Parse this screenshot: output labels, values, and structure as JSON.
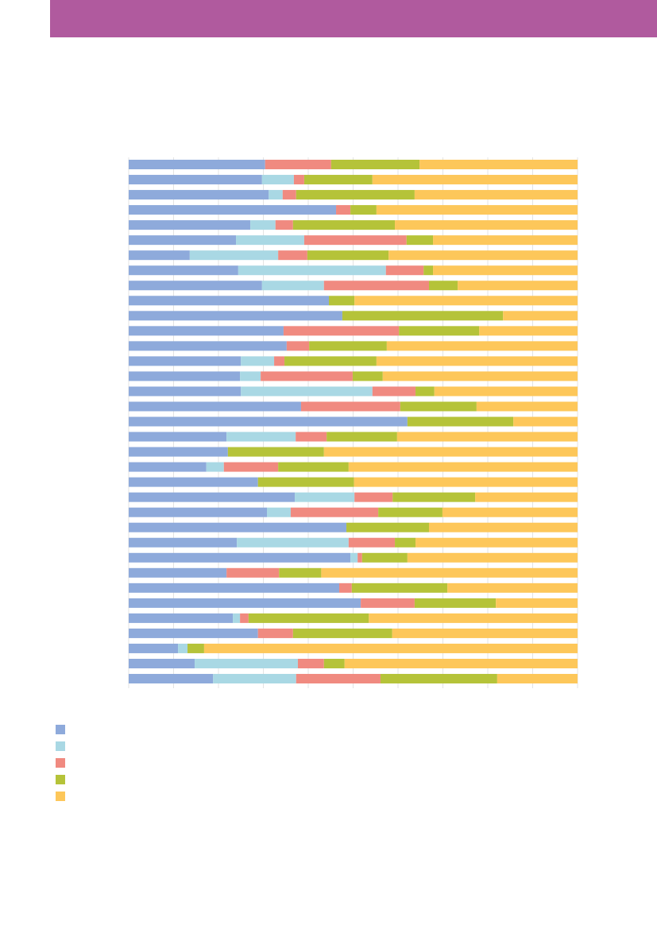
{
  "chart_data": {
    "type": "bar",
    "orientation": "horizontal",
    "stacked": true,
    "grid": true,
    "xlim": [
      0,
      100
    ],
    "xticks": [
      0,
      10,
      20,
      30,
      40,
      50,
      60,
      70,
      80,
      90,
      100
    ],
    "categories": [
      null,
      null,
      null,
      null,
      null,
      null,
      null,
      null,
      null,
      null,
      null,
      null,
      null,
      null,
      null,
      null,
      null,
      null,
      null,
      null,
      null,
      null,
      null,
      null,
      null,
      null,
      null,
      null,
      null,
      null,
      null,
      null,
      null,
      null,
      null
    ],
    "series": [
      {
        "color": "#8eaadb",
        "values": [
          30.4,
          29.7,
          31.2,
          46.2,
          27.1,
          23.9,
          13.6,
          24.4,
          29.7,
          44.6,
          47.6,
          34.5,
          35.2,
          25.0,
          24.8,
          25.0,
          38.4,
          62.1,
          21.8,
          22.1,
          17.3,
          28.8,
          37.0,
          30.8,
          48.5,
          24.1,
          49.4,
          21.8,
          46.9,
          51.7,
          23.2,
          28.8,
          11.0,
          14.7,
          18.8
        ]
      },
      {
        "color": "#a9d8e4",
        "values": [
          0,
          7.1,
          3.1,
          0,
          5.6,
          15.2,
          19.7,
          32.9,
          13.8,
          0,
          0,
          0,
          0,
          7.4,
          4.6,
          29.3,
          0,
          0,
          15.4,
          0,
          3.9,
          0,
          13.3,
          5.3,
          0,
          24.9,
          1.6,
          0,
          0,
          0,
          1.6,
          0,
          2.1,
          23.0,
          18.5
        ]
      },
      {
        "color": "#f08a80",
        "values": [
          14.7,
          2.3,
          3.0,
          3.2,
          3.9,
          22.8,
          6.5,
          8.4,
          23.4,
          0,
          0,
          25.7,
          5.0,
          2.3,
          20.5,
          9.6,
          22.1,
          0,
          6.9,
          0,
          12.1,
          0,
          8.5,
          19.5,
          0,
          10.3,
          1.0,
          11.7,
          2.8,
          12.0,
          1.9,
          7.8,
          0,
          5.8,
          18.8
        ]
      },
      {
        "color": "#b5c339",
        "values": [
          19.7,
          15.2,
          26.4,
          5.8,
          22.7,
          5.9,
          18.1,
          2.1,
          6.4,
          5.7,
          35.8,
          17.9,
          17.3,
          20.5,
          6.7,
          4.2,
          17.0,
          23.6,
          15.7,
          21.4,
          15.7,
          21.4,
          18.4,
          14.3,
          18.4,
          4.6,
          10.1,
          9.4,
          21.3,
          18.1,
          26.8,
          22.1,
          3.7,
          4.6,
          26.0
        ]
      },
      {
        "color": "#fdc75a",
        "values": [
          35.2,
          45.7,
          36.3,
          44.8,
          40.7,
          32.2,
          42.1,
          32.2,
          26.7,
          49.7,
          16.6,
          21.9,
          42.5,
          44.8,
          43.4,
          31.9,
          22.5,
          14.3,
          40.2,
          56.5,
          51.0,
          49.8,
          22.8,
          30.1,
          33.1,
          36.1,
          37.9,
          57.1,
          29.0,
          18.2,
          46.5,
          41.3,
          83.2,
          51.9,
          17.9
        ]
      }
    ]
  }
}
